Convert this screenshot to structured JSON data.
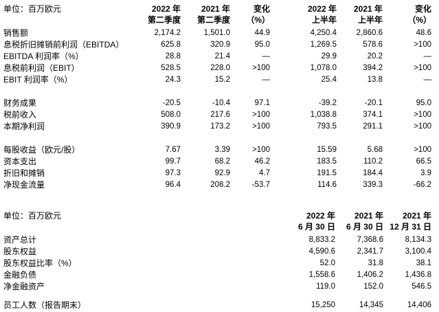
{
  "page": {
    "background": "#ffffff",
    "text_color": "#000000"
  },
  "table1": {
    "unit_label": "单位：百万欧元",
    "col_headers": [
      {
        "line1": "2022 年",
        "line2": "第二季度"
      },
      {
        "line1": "2021 年",
        "line2": "第二季度"
      },
      {
        "line1": "变化",
        "line2": "（%）"
      },
      {
        "line1": "2022 年",
        "line2": "上半年"
      },
      {
        "line1": "2021 年",
        "line2": "上半年"
      },
      {
        "line1": "变化",
        "line2": "（%）"
      }
    ],
    "rows": [
      {
        "label": "销售额",
        "values": [
          "2,174.2",
          "1,501.0",
          "44.9",
          "4,250.4",
          "2,860.6",
          "48.6"
        ]
      },
      {
        "label": "息税折旧摊销前利润（EBITDA）",
        "values": [
          "625.8",
          "320.9",
          "95.0",
          "1,269.5",
          "578.6",
          ">100"
        ]
      },
      {
        "label": "EBITDA 利润率（%）",
        "values": [
          "28.8",
          "21.4",
          "—",
          "29.9",
          "20.2",
          "—"
        ]
      },
      {
        "label": "息税前利润（EBIT）",
        "values": [
          "528.5",
          "228.0",
          ">100",
          "1,078.0",
          "394.2",
          ">100"
        ]
      },
      {
        "label": "EBIT 利润率（%）",
        "values": [
          "24.3",
          "15.2",
          "—",
          "25.4",
          "13.8",
          "—"
        ]
      },
      {
        "spacer": true
      },
      {
        "label": "财务成果",
        "values": [
          "-20.5",
          "-10.4",
          "97.1",
          "-39.2",
          "-20.1",
          "95.0"
        ]
      },
      {
        "label": "税前收入",
        "values": [
          "508.0",
          "217.6",
          ">100",
          "1,038.8",
          "374.1",
          ">100"
        ]
      },
      {
        "label": "本期净利润",
        "values": [
          "390.9",
          "173.2",
          ">100",
          "793.5",
          "291.1",
          ">100"
        ]
      },
      {
        "spacer": true
      },
      {
        "label": "每股收益（欧元/股）",
        "values": [
          "7.67",
          "3.39",
          ">100",
          "15.59",
          "5.68",
          ">100"
        ]
      },
      {
        "label": "资本支出",
        "values": [
          "99.7",
          "68.2",
          "46.2",
          "183.5",
          "110.2",
          "66.5"
        ]
      },
      {
        "label": "折旧和摊销",
        "values": [
          "97.3",
          "92.9",
          "4.7",
          "191.5",
          "184.4",
          "3.9"
        ]
      },
      {
        "label": "净现金流量",
        "values": [
          "96.4",
          "208.2",
          "-53.7",
          "114.6",
          "339.3",
          "-66.2"
        ]
      }
    ]
  },
  "table2": {
    "unit_label": "单位：百万欧元",
    "col_headers": [
      {
        "line1": "2022 年",
        "line2": "6 月 30 日"
      },
      {
        "line1": "2021 年",
        "line2": "6 月 30 日"
      },
      {
        "line1": "2021 年",
        "line2": "12 月 31 日"
      }
    ],
    "rows": [
      {
        "label": "资产总计",
        "values": [
          "8,833.2",
          "7,368.6",
          "8,134.3"
        ]
      },
      {
        "label": "股东权益",
        "values": [
          "4,590.6",
          "2,341.7",
          "3,100.4"
        ]
      },
      {
        "label": "股东权益比率（%）",
        "values": [
          "52.0",
          "31.8",
          "38.1"
        ]
      },
      {
        "label": "金融负债",
        "values": [
          "1,558.6",
          "1,406.2",
          "1,436.8"
        ]
      },
      {
        "label": "净金融资产",
        "values": [
          "119.0",
          "152.0",
          "546.5"
        ]
      },
      {
        "spacer": true,
        "small": true
      },
      {
        "label": "员工人数（报告期末）",
        "values": [
          "15,250",
          "14,345",
          "14,406"
        ]
      }
    ]
  }
}
